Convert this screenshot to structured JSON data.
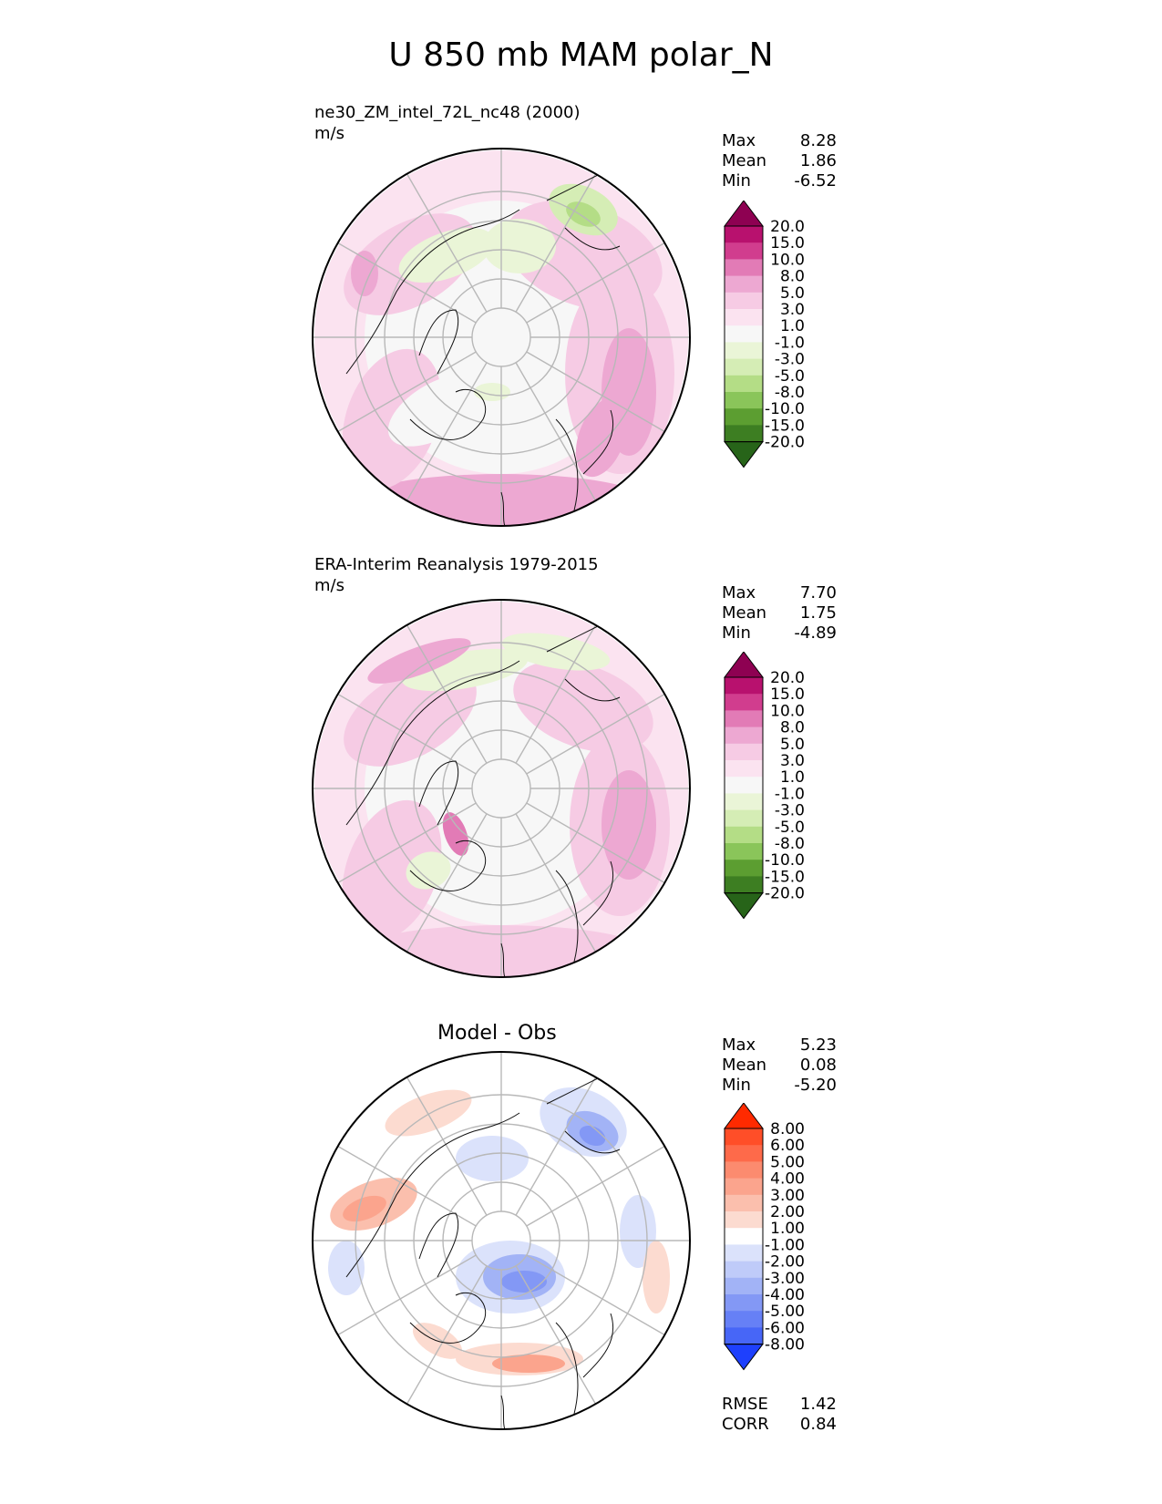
{
  "title": "U 850 mb MAM polar_N",
  "chart_data": [
    {
      "type": "heatmap",
      "projection": "north-polar-stereographic",
      "title": "ne30_ZM_intel_72L_nc48 (2000)",
      "units": "m/s",
      "stats": [
        {
          "label": "Max",
          "value": "8.28"
        },
        {
          "label": "Mean",
          "value": "1.86"
        },
        {
          "label": "Min",
          "value": "-6.52"
        }
      ],
      "colorbar": {
        "levels": [
          "20.0",
          "15.0",
          "10.0",
          "8.0",
          "5.0",
          "3.0",
          "1.0",
          "-1.0",
          "-3.0",
          "-5.0",
          "-8.0",
          "-10.0",
          "-15.0",
          "-20.0"
        ],
        "colors": [
          "#8e0152",
          "#b8116e",
          "#d13d8e",
          "#e27bb6",
          "#eda8d2",
          "#f6cbe4",
          "#fbe3f0",
          "#f7f7f7",
          "#eaf5d7",
          "#d5edb5",
          "#b4dd86",
          "#8ac55a",
          "#5c9e31",
          "#3d7e22",
          "#276419"
        ]
      }
    },
    {
      "type": "heatmap",
      "projection": "north-polar-stereographic",
      "title": "ERA-Interim Reanalysis 1979-2015",
      "units": "m/s",
      "stats": [
        {
          "label": "Max",
          "value": "7.70"
        },
        {
          "label": "Mean",
          "value": "1.75"
        },
        {
          "label": "Min",
          "value": "-4.89"
        }
      ],
      "colorbar": {
        "levels": [
          "20.0",
          "15.0",
          "10.0",
          "8.0",
          "5.0",
          "3.0",
          "1.0",
          "-1.0",
          "-3.0",
          "-5.0",
          "-8.0",
          "-10.0",
          "-15.0",
          "-20.0"
        ],
        "colors": [
          "#8e0152",
          "#b8116e",
          "#d13d8e",
          "#e27bb6",
          "#eda8d2",
          "#f6cbe4",
          "#fbe3f0",
          "#f7f7f7",
          "#eaf5d7",
          "#d5edb5",
          "#b4dd86",
          "#8ac55a",
          "#5c9e31",
          "#3d7e22",
          "#276419"
        ]
      }
    },
    {
      "type": "heatmap",
      "projection": "north-polar-stereographic",
      "title": "Model - Obs",
      "units": "",
      "stats": [
        {
          "label": "Max",
          "value": "5.23"
        },
        {
          "label": "Mean",
          "value": "0.08"
        },
        {
          "label": "Min",
          "value": "-5.20"
        }
      ],
      "extra_stats": [
        {
          "label": "RMSE",
          "value": "1.42"
        },
        {
          "label": "CORR",
          "value": "0.84"
        }
      ],
      "colorbar": {
        "levels": [
          "8.00",
          "6.00",
          "5.00",
          "4.00",
          "3.00",
          "2.00",
          "1.00",
          "-1.00",
          "-2.00",
          "-3.00",
          "-4.00",
          "-5.00",
          "-6.00",
          "-8.00"
        ],
        "colors": [
          "#ff2a00",
          "#ff4e28",
          "#fe6a4a",
          "#fc8b6f",
          "#fba48d",
          "#fbbfad",
          "#fcdbd0",
          "#ffffff",
          "#dbe2fb",
          "#bfcbf9",
          "#a2b3f6",
          "#8398f5",
          "#6680f6",
          "#4766f7",
          "#1e40fd"
        ]
      }
    }
  ]
}
